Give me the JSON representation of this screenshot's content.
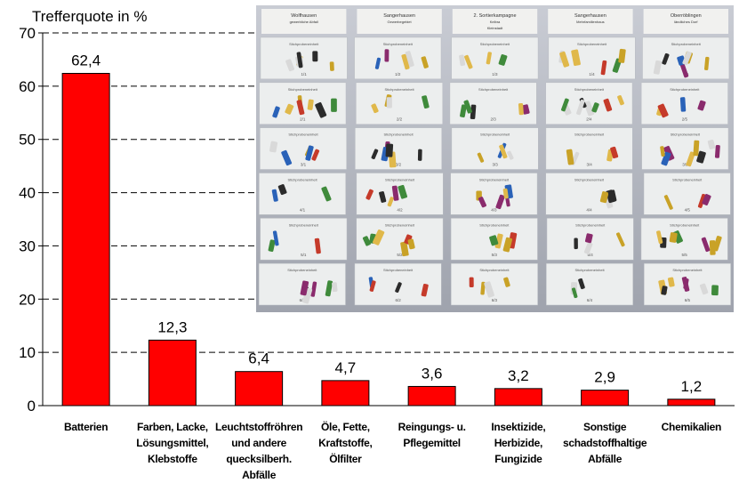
{
  "chart_data": {
    "type": "bar",
    "ylabel": "Trefferquote in %",
    "ylim": [
      0,
      70
    ],
    "yticks": [
      0,
      10,
      20,
      30,
      40,
      50,
      60,
      70
    ],
    "grid": "dashed horizontal",
    "bar_color": "#ff0000",
    "categories": [
      [
        "Batterien"
      ],
      [
        "Farben, Lacke,",
        "Lösungsmittel,",
        "Klebstoffe"
      ],
      [
        "Leuchtstoffröhren",
        "und andere",
        "quecksilberh.",
        "Abfälle"
      ],
      [
        "Öle, Fette,",
        "Kraftstoffe,",
        "Ölfilter"
      ],
      [
        "Reingungs- u.",
        "Pflegemittel"
      ],
      [
        "Insektizide,",
        "Herbizide,",
        "Fungizide"
      ],
      [
        "Sonstige",
        "schadstoffhaltige",
        "Abfälle"
      ],
      [
        "Chemikalien"
      ]
    ],
    "values": [
      62.4,
      12.3,
      6.4,
      4.7,
      3.6,
      3.2,
      2.9,
      1.2
    ],
    "value_labels": [
      "62,4",
      "12,3",
      "6,4",
      "4,7",
      "3,6",
      "3,2",
      "2,9",
      "1,2"
    ]
  },
  "photo": {
    "subject": "sorted-batteries-on-sample-sheets",
    "columns": [
      {
        "header": [
          "Wolfhausen",
          "gewerbliche Abfall"
        ],
        "sheets": [
          "1/1",
          "2/1",
          "3/1",
          "4/1",
          "5/1",
          "6/1"
        ]
      },
      {
        "header": [
          "Sangerhausen",
          "Gewerbegebiet"
        ],
        "sheets": [
          "1/2",
          "2/2",
          "3/2",
          "4/2",
          "5/2",
          "6/2"
        ]
      },
      {
        "header": [
          "2. Sortierkampagne",
          "Kelbra",
          "Kleinstadt"
        ],
        "sheets": [
          "1/3",
          "2/3",
          "3/3",
          "4/3",
          "5/3",
          "6/3"
        ]
      },
      {
        "header": [
          "Sangerhausen",
          "Mehrfamilienhaus"
        ],
        "sheets": [
          "1/4",
          "2/4",
          "3/4",
          "4/4",
          "5/4",
          "6/4"
        ]
      },
      {
        "header": [
          "Oberröblingen",
          "ländliches Dorf"
        ],
        "sheets": [
          "1/5",
          "2/5",
          "3/5",
          "4/5",
          "5/5",
          "6/5"
        ]
      }
    ],
    "sheet_caption": "Stichprobeneinheit"
  }
}
